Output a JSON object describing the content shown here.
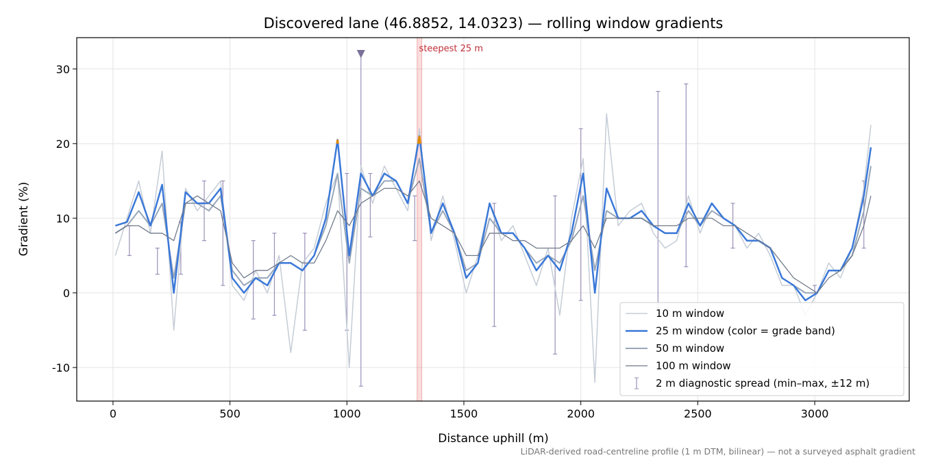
{
  "chart_data": {
    "type": "line",
    "title": "Discovered lane (46.8852, 14.0323) — rolling window gradients",
    "xlabel": "Distance uphill (m)",
    "ylabel": "Gradient (%)",
    "footnote": "LiDAR-derived road-centreline profile (1 m DTM, bilinear) — not a surveyed asphalt gradient",
    "annotation": "steepest 25 m",
    "steepest_span": [
      1300,
      1320
    ],
    "marker_x": 1060,
    "marker_y": 32,
    "xlim": [
      -155,
      3404
    ],
    "ylim": [
      -14.5,
      34.2
    ],
    "xticks": [
      0,
      500,
      1000,
      1500,
      2000,
      2500,
      3000
    ],
    "yticks": [
      -10,
      0,
      10,
      20,
      30
    ],
    "grid": true,
    "legend": "lower right",
    "x": [
      10,
      60,
      110,
      160,
      210,
      260,
      310,
      360,
      410,
      460,
      510,
      560,
      610,
      660,
      710,
      760,
      810,
      860,
      910,
      960,
      1010,
      1060,
      1110,
      1160,
      1210,
      1260,
      1310,
      1360,
      1410,
      1460,
      1510,
      1560,
      1610,
      1660,
      1710,
      1760,
      1810,
      1860,
      1910,
      1960,
      2010,
      2060,
      2110,
      2160,
      2210,
      2260,
      2310,
      2360,
      2410,
      2460,
      2510,
      2560,
      2610,
      2660,
      2710,
      2760,
      2810,
      2860,
      2910,
      2960,
      3010,
      3060,
      3110,
      3160,
      3210,
      3240
    ],
    "series": [
      {
        "name": "10 m window",
        "color": "#c5ccd6",
        "width": 1.5,
        "values": [
          5,
          10,
          15,
          8,
          19,
          -5,
          14,
          11,
          13,
          15,
          1,
          -1,
          3,
          0,
          5,
          -8,
          4,
          6,
          12,
          16,
          -10,
          17,
          12,
          17,
          14,
          11,
          22,
          7,
          13,
          7,
          0,
          5,
          12,
          7,
          9,
          5,
          1,
          6,
          -3,
          10,
          18,
          -12,
          24,
          9,
          11,
          12,
          8,
          6,
          7,
          13,
          8,
          12,
          10,
          9,
          6,
          8,
          5,
          1,
          1,
          -3,
          0,
          4,
          2,
          6,
          14,
          22.5
        ]
      },
      {
        "name": "25 m window (color = grade band)",
        "color": "#3a78d8",
        "width": 2.5,
        "band_color": "#e08a00",
        "band_min": 20,
        "values": [
          9,
          9.5,
          13.5,
          9,
          14.5,
          0,
          13.5,
          12,
          12,
          14,
          2,
          0,
          2,
          1,
          4,
          4,
          3,
          5,
          10,
          20.5,
          5,
          16,
          13,
          16,
          15,
          12,
          21,
          8,
          12,
          8,
          2,
          4,
          12,
          8,
          8,
          6,
          3,
          5,
          3,
          8,
          16,
          0,
          14,
          10,
          10,
          11,
          9,
          8,
          8,
          12,
          9,
          12,
          10,
          9,
          7,
          7,
          6,
          2,
          1,
          -1,
          0,
          3,
          3,
          6,
          13,
          19.5
        ]
      },
      {
        "name": "50 m window",
        "color": "#98a6b8",
        "width": 2,
        "values": [
          8,
          9,
          11,
          9,
          12,
          2,
          12,
          12,
          11,
          13,
          3,
          1,
          2,
          2,
          4,
          4,
          3,
          5,
          9,
          16,
          4,
          14,
          13,
          15,
          15,
          12,
          18,
          8,
          11,
          8,
          3,
          4,
          10,
          8,
          8,
          6,
          4,
          5,
          4,
          7,
          13,
          3,
          11,
          10,
          10,
          10,
          9,
          8,
          8,
          11,
          9,
          11,
          10,
          9,
          7,
          7,
          6,
          2,
          1,
          0,
          0,
          3,
          3,
          5,
          11,
          17
        ]
      },
      {
        "name": "100 m window",
        "color": "#707a8a",
        "width": 1.3,
        "values": [
          8,
          9,
          9,
          8,
          8,
          7,
          12,
          13,
          12,
          11,
          4,
          2,
          3,
          3,
          4,
          5,
          4,
          4,
          7,
          11,
          9,
          12,
          13,
          14,
          14,
          13,
          15,
          10,
          9,
          8,
          5,
          5,
          8,
          8,
          7,
          7,
          6,
          6,
          6,
          7,
          9,
          6,
          10,
          10,
          10,
          10,
          9,
          9,
          9,
          10,
          10,
          10,
          9,
          9,
          8,
          7,
          6,
          4,
          2,
          1,
          0,
          2,
          3,
          5,
          9,
          13
        ]
      }
    ],
    "errorbars": {
      "name": "2 m diagnostic spread (min–max, ±12 m)",
      "color": "#9a8fb8",
      "x": [
        70,
        190,
        290,
        390,
        470,
        600,
        690,
        820,
        1000,
        1060,
        1100,
        1290,
        1630,
        1890,
        2000,
        2330,
        2450,
        2650,
        3000,
        3210
      ],
      "low": [
        5,
        2.5,
        2.5,
        7,
        1,
        -3.5,
        -3,
        -5,
        -5,
        -12.5,
        7.5,
        7,
        -4.5,
        -8.2,
        -1,
        -2,
        3.5,
        6,
        0,
        6
      ],
      "high": [
        9,
        6,
        9.5,
        15,
        15,
        7,
        8,
        8,
        16,
        32,
        16,
        13,
        12,
        13,
        22,
        27,
        28,
        12,
        1,
        15
      ]
    }
  }
}
